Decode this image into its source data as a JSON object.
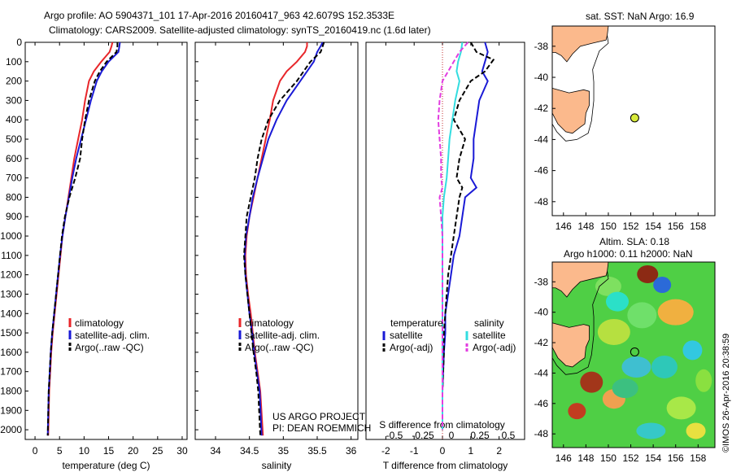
{
  "header": {
    "line1": "Argo profile: AO 5904371_101 17-Apr-2016 20160417_963 42.6079S 152.3533E",
    "line2": "Climatology: CARS2009. Satellite-adjusted climatology: synTS_20160419.nc (1.6d later)"
  },
  "colors": {
    "clim": "#e8262a",
    "sat": "#1a1ad6",
    "argo": "#000000",
    "sat_s": "#33dde0",
    "argo_s": "#e23ce0",
    "land": "#fbb98c",
    "float": "#d8ea3a"
  },
  "chart_data": [
    {
      "id": "temperature",
      "type": "line",
      "xlabel": "temperature (deg C)",
      "ylabel": "",
      "xlim": [
        -2,
        31
      ],
      "ylim": [
        2050,
        0
      ],
      "xticks": [
        0,
        5,
        10,
        15,
        20,
        25,
        30
      ],
      "yticks": [
        0,
        100,
        200,
        300,
        400,
        500,
        600,
        700,
        800,
        900,
        1000,
        1100,
        1200,
        1300,
        1400,
        1500,
        1600,
        1700,
        1800,
        1900,
        2000
      ],
      "legend": [
        "climatology",
        "satellite-adj. clim.",
        "Argo(..raw -QC)"
      ],
      "series": [
        {
          "name": "climatology",
          "color": "#e8262a",
          "dash": "",
          "x": [
            15.8,
            15.6,
            15.2,
            13.5,
            12.0,
            11.0,
            10.2,
            9.6,
            8.8,
            8.0,
            7.4,
            6.8,
            6.2,
            5.6,
            5.2,
            4.8,
            4.4,
            4.0,
            3.6,
            3.3,
            3.1,
            2.9,
            2.7
          ],
          "y": [
            0,
            20,
            50,
            100,
            150,
            200,
            300,
            400,
            500,
            600,
            700,
            800,
            900,
            1000,
            1100,
            1200,
            1300,
            1400,
            1500,
            1600,
            1700,
            1800,
            2030
          ]
        },
        {
          "name": "satellite-adj. clim.",
          "color": "#1a1ad6",
          "dash": "",
          "x": [
            17.3,
            17.2,
            17.0,
            15.0,
            13.6,
            12.6,
            11.4,
            10.4,
            9.4,
            8.4,
            7.6,
            6.9,
            6.2,
            5.6,
            5.1,
            4.7,
            4.3,
            3.9,
            3.5,
            3.2,
            3.0,
            2.8,
            2.6
          ],
          "y": [
            0,
            20,
            50,
            100,
            150,
            200,
            300,
            400,
            500,
            600,
            700,
            800,
            900,
            1000,
            1100,
            1200,
            1300,
            1400,
            1500,
            1600,
            1700,
            1800,
            2030
          ]
        },
        {
          "name": "Argo(..raw -QC)",
          "color": "#000000",
          "dash": "6,3",
          "x": [
            16.8,
            16.8,
            16.6,
            14.6,
            13.2,
            12.2,
            11.0,
            10.2,
            9.6,
            9.2,
            8.2,
            7.0,
            6.1,
            5.5,
            5.1,
            4.7,
            4.3,
            3.9,
            3.5,
            3.2,
            3.0,
            2.8,
            2.6
          ],
          "y": [
            0,
            20,
            50,
            100,
            150,
            200,
            300,
            400,
            500,
            600,
            700,
            800,
            900,
            1000,
            1100,
            1200,
            1300,
            1400,
            1500,
            1600,
            1700,
            1800,
            2030
          ]
        }
      ]
    },
    {
      "id": "salinity",
      "type": "line",
      "xlabel": "salinity",
      "ylabel": "",
      "xlim": [
        33.7,
        36.1
      ],
      "ylim": [
        2050,
        0
      ],
      "xticks": [
        34,
        34.5,
        35,
        35.5,
        36
      ],
      "yticks": [],
      "legend": [
        "climatology",
        "satellite-adj. clim.",
        "Argo(..raw -QC)"
      ],
      "series": [
        {
          "name": "climatology",
          "color": "#e8262a",
          "dash": "",
          "x": [
            35.35,
            35.35,
            35.32,
            35.2,
            35.05,
            34.95,
            34.85,
            34.8,
            34.74,
            34.68,
            34.62,
            34.56,
            34.5,
            34.46,
            34.44,
            34.45,
            34.48,
            34.52,
            34.55,
            34.58,
            34.62,
            34.66,
            34.7
          ],
          "y": [
            0,
            20,
            50,
            100,
            150,
            200,
            300,
            400,
            500,
            600,
            700,
            800,
            900,
            1000,
            1100,
            1200,
            1300,
            1400,
            1500,
            1600,
            1700,
            1800,
            2030
          ]
        },
        {
          "name": "satellite-adj. clim.",
          "color": "#1a1ad6",
          "dash": "",
          "x": [
            35.58,
            35.55,
            35.5,
            35.45,
            35.35,
            35.25,
            35.05,
            34.9,
            34.78,
            34.7,
            34.62,
            34.55,
            34.5,
            34.45,
            34.43,
            34.44,
            34.47,
            34.5,
            34.54,
            34.57,
            34.61,
            34.65,
            34.68
          ],
          "y": [
            0,
            20,
            50,
            100,
            150,
            200,
            300,
            400,
            500,
            600,
            700,
            800,
            900,
            1000,
            1100,
            1200,
            1300,
            1400,
            1500,
            1600,
            1700,
            1800,
            2030
          ]
        },
        {
          "name": "Argo(..raw -QC)",
          "color": "#000000",
          "dash": "6,3",
          "x": [
            35.6,
            35.58,
            35.55,
            35.4,
            35.3,
            35.2,
            34.95,
            34.78,
            34.68,
            34.62,
            34.58,
            34.52,
            34.46,
            34.44,
            34.42,
            34.44,
            34.47,
            34.5,
            34.53,
            34.56,
            34.6,
            34.63,
            34.66
          ],
          "y": [
            0,
            20,
            50,
            100,
            150,
            200,
            300,
            400,
            500,
            600,
            700,
            800,
            900,
            1000,
            1100,
            1200,
            1300,
            1400,
            1500,
            1600,
            1700,
            1800,
            2030
          ]
        }
      ],
      "annotations": [
        "US ARGO PROJECT",
        "PI: DEAN ROEMMICH"
      ]
    },
    {
      "id": "difference",
      "type": "line",
      "xlabel": "T difference from climatology",
      "xlabel_top": "S difference from climatology",
      "xlim": [
        -2.7,
        2.9
      ],
      "ylim": [
        2050,
        0
      ],
      "xticks": [
        -2,
        -1,
        0,
        1,
        2
      ],
      "xticks_s": [
        -0.5,
        -0.25,
        0,
        0.25,
        0.5
      ],
      "yticks": [],
      "legend_title_t": "temperature",
      "legend_title_s": "salinity",
      "legend_t": [
        "satellite",
        "Argo(-adj)"
      ],
      "legend_s": [
        "satellite",
        "Argo(-adj)"
      ],
      "series": [
        {
          "name": "satellite",
          "color": "#1a1ad6",
          "dash": "",
          "x": [
            1.5,
            1.6,
            1.5,
            1.4,
            1.6,
            1.3,
            1.2,
            1.1,
            1.1,
            1.0,
            1.2,
            0.8,
            0.7,
            0.6,
            0.4,
            0.3,
            0.2,
            0.1,
            0.1,
            0.05,
            0.0,
            0.0
          ],
          "y": [
            0,
            50,
            100,
            150,
            200,
            300,
            400,
            500,
            600,
            700,
            750,
            800,
            900,
            1000,
            1100,
            1200,
            1300,
            1400,
            1500,
            1600,
            1800,
            2000
          ]
        },
        {
          "name": "Argo(-adj)",
          "color": "#000000",
          "dash": "6,3",
          "x": [
            1.0,
            1.2,
            1.8,
            1.5,
            1.0,
            0.6,
            0.4,
            0.8,
            0.6,
            0.5,
            0.7,
            0.6,
            0.5,
            0.4,
            0.3,
            0.2,
            0.15,
            0.1,
            0.05,
            0.05,
            0.0,
            0.0
          ],
          "y": [
            0,
            50,
            90,
            150,
            200,
            300,
            400,
            500,
            600,
            700,
            750,
            800,
            900,
            1000,
            1100,
            1200,
            1300,
            1400,
            1500,
            1600,
            1800,
            2000
          ]
        },
        {
          "name": "satellite",
          "color": "#33dde0",
          "dash": "",
          "x": [
            0.7,
            0.65,
            0.55,
            0.5,
            0.6,
            0.45,
            0.35,
            0.25,
            0.2,
            0.15,
            0.1,
            0.05,
            0.0,
            0.0,
            0.0,
            0.0,
            0.0,
            0.0,
            0.0,
            0.0,
            0.0,
            0.0
          ],
          "y": [
            0,
            50,
            100,
            150,
            200,
            300,
            400,
            500,
            600,
            700,
            750,
            800,
            900,
            1000,
            1100,
            1200,
            1300,
            1400,
            1500,
            1600,
            1800,
            2000
          ]
        },
        {
          "name": "Argo(-adj)",
          "color": "#e23ce0",
          "dash": "6,3",
          "x": [
            0.9,
            0.6,
            0.4,
            0.2,
            0.0,
            -0.1,
            -0.15,
            -0.1,
            -0.05,
            -0.05,
            0.0,
            -0.1,
            -0.05,
            0.0,
            0.0,
            0.0,
            0.0,
            0.0,
            0.0,
            0.0,
            0.0,
            0.0
          ],
          "y": [
            0,
            50,
            100,
            150,
            200,
            300,
            400,
            500,
            600,
            700,
            750,
            800,
            900,
            1000,
            1100,
            1200,
            1300,
            1400,
            1500,
            1600,
            1800,
            2000
          ]
        }
      ]
    }
  ],
  "map_sst": {
    "title": "sat. SST: NaN Argo: 16.9",
    "xticks": [
      146,
      148,
      150,
      152,
      154,
      156,
      158
    ],
    "yticks": [
      -38,
      -40,
      -42,
      -44,
      -46,
      -48
    ],
    "float": {
      "lon": 152.35,
      "lat": -42.61
    }
  },
  "map_sla": {
    "title1": "Altim. SLA: 0.18",
    "title2": "Argo h1000: 0.11 h2000: NaN",
    "xticks": [
      146,
      148,
      150,
      152,
      154,
      156,
      158
    ],
    "yticks": [
      -38,
      -40,
      -42,
      -44,
      -46,
      -48
    ],
    "float": {
      "lon": 152.35,
      "lat": -42.61
    }
  },
  "credit": "©IMOS 26-Apr-2016 20:38:59"
}
